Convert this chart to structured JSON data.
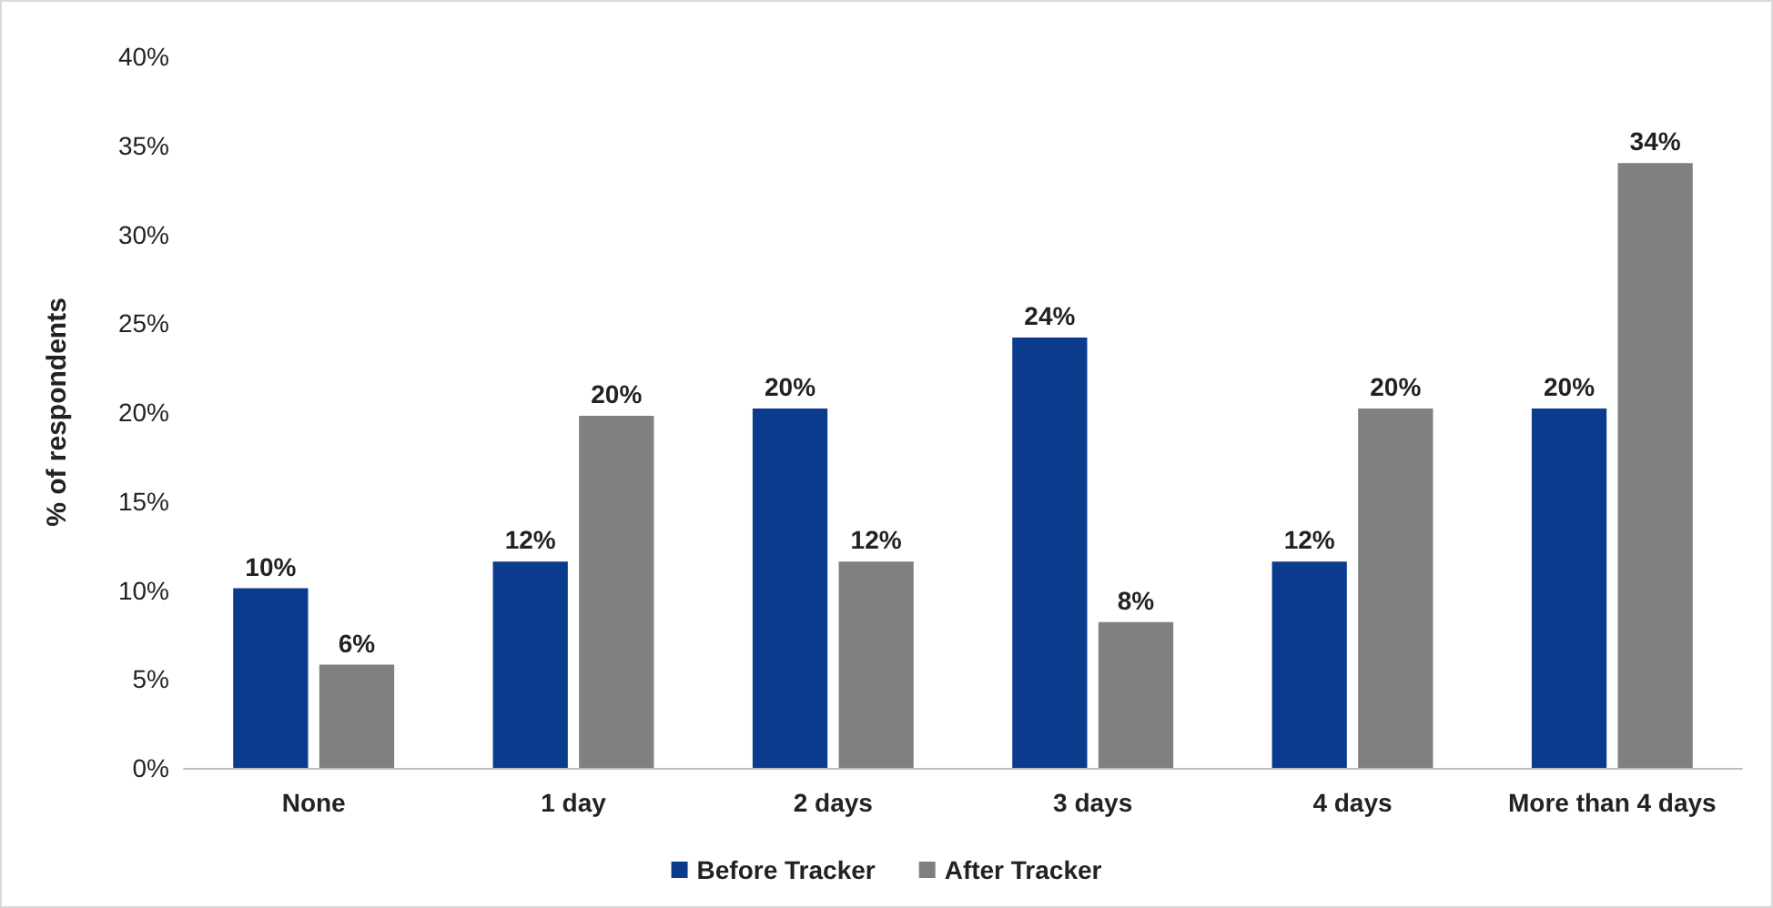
{
  "chart_data": {
    "type": "bar",
    "ylabel": "% of respondents",
    "categories": [
      "None",
      "1 day",
      "2 days",
      "3 days",
      "4 days",
      "More than 4 days"
    ],
    "series": [
      {
        "name": "Before Tracker",
        "color": "#0b3b8c",
        "values": [
          10.1,
          11.6,
          20.2,
          24.2,
          11.6,
          20.2
        ],
        "value_labels": [
          "10%",
          "12%",
          "20%",
          "24%",
          "12%",
          "20%"
        ]
      },
      {
        "name": "After Tracker",
        "color": "#808080",
        "values": [
          5.8,
          19.8,
          11.6,
          8.2,
          20.2,
          34.0
        ],
        "value_labels": [
          "6%",
          "20%",
          "12%",
          "8%",
          "20%",
          "34%"
        ]
      }
    ],
    "ylim": [
      0,
      40
    ],
    "yticks": [
      {
        "value": 0,
        "label": "0%"
      },
      {
        "value": 5,
        "label": "5%"
      },
      {
        "value": 10,
        "label": "10%"
      },
      {
        "value": 15,
        "label": "15%"
      },
      {
        "value": 20,
        "label": "20%"
      },
      {
        "value": 25,
        "label": "25%"
      },
      {
        "value": 30,
        "label": "30%"
      },
      {
        "value": 35,
        "label": "35%"
      },
      {
        "value": 40,
        "label": "40%"
      }
    ],
    "grid": false,
    "legend": "bottom"
  }
}
